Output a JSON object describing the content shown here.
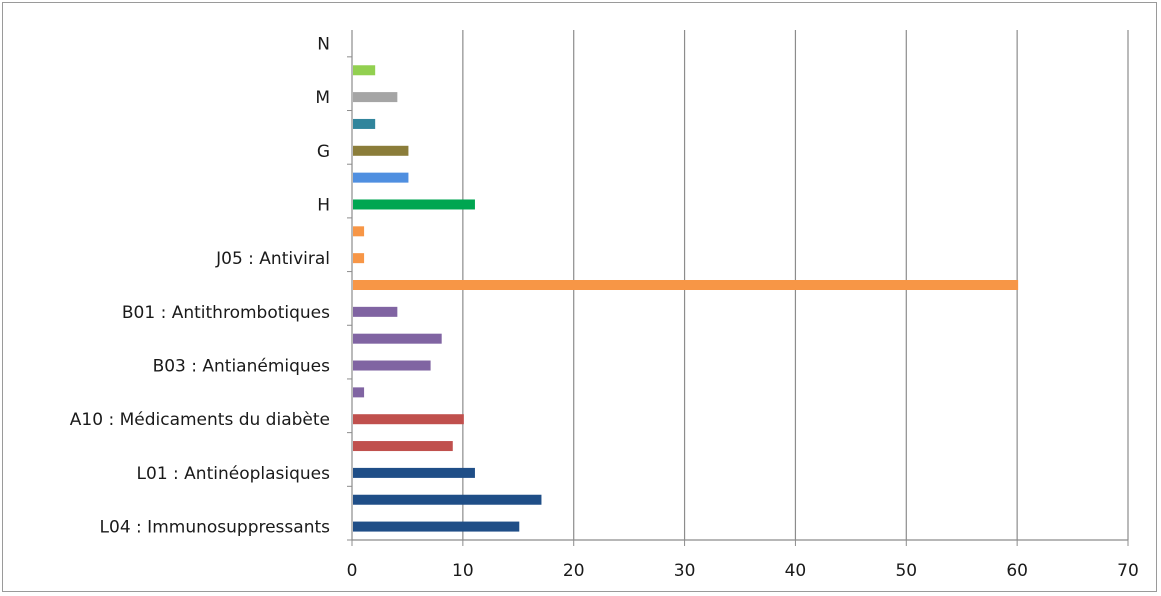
{
  "chart_data": {
    "type": "bar",
    "orientation": "horizontal",
    "title": "",
    "xlabel": "",
    "ylabel": "",
    "xlim": [
      0,
      70
    ],
    "x_ticks": [
      0,
      10,
      20,
      30,
      40,
      50,
      60,
      70
    ],
    "grid": "vertical",
    "legend": "none",
    "bars": [
      {
        "label": "L04 : Immunosuppressants",
        "value": 15,
        "color": "#1f4e87"
      },
      {
        "label": "",
        "value": 17,
        "color": "#1f4e87"
      },
      {
        "label": "L01 : Antinéoplasiques",
        "value": 11,
        "color": "#1f4e87"
      },
      {
        "label": "",
        "value": 9,
        "color": "#c0504d"
      },
      {
        "label": "A10 : Médicaments du diabète",
        "value": 10,
        "color": "#c0504d"
      },
      {
        "label": "",
        "value": 1,
        "color": "#8064a2"
      },
      {
        "label": "B03 : Antianémiques",
        "value": 7,
        "color": "#8064a2"
      },
      {
        "label": "",
        "value": 8,
        "color": "#8064a2"
      },
      {
        "label": "B01 : Antithrombotiques",
        "value": 4,
        "color": "#8064a2"
      },
      {
        "label": "",
        "value": 60,
        "color": "#f79646"
      },
      {
        "label": "J05 : Antiviral",
        "value": 1,
        "color": "#f79646"
      },
      {
        "label": "",
        "value": 1,
        "color": "#f79646"
      },
      {
        "label": "H",
        "value": 11,
        "color": "#00a651"
      },
      {
        "label": "",
        "value": 5,
        "color": "#4f8fe0"
      },
      {
        "label": "G",
        "value": 5,
        "color": "#8b7d3a"
      },
      {
        "label": "",
        "value": 2,
        "color": "#31859c"
      },
      {
        "label": "M",
        "value": 4,
        "color": "#a5a5a5"
      },
      {
        "label": "",
        "value": 2,
        "color": "#92d050"
      },
      {
        "label": "N",
        "value": null,
        "color": "#92d050"
      }
    ]
  }
}
